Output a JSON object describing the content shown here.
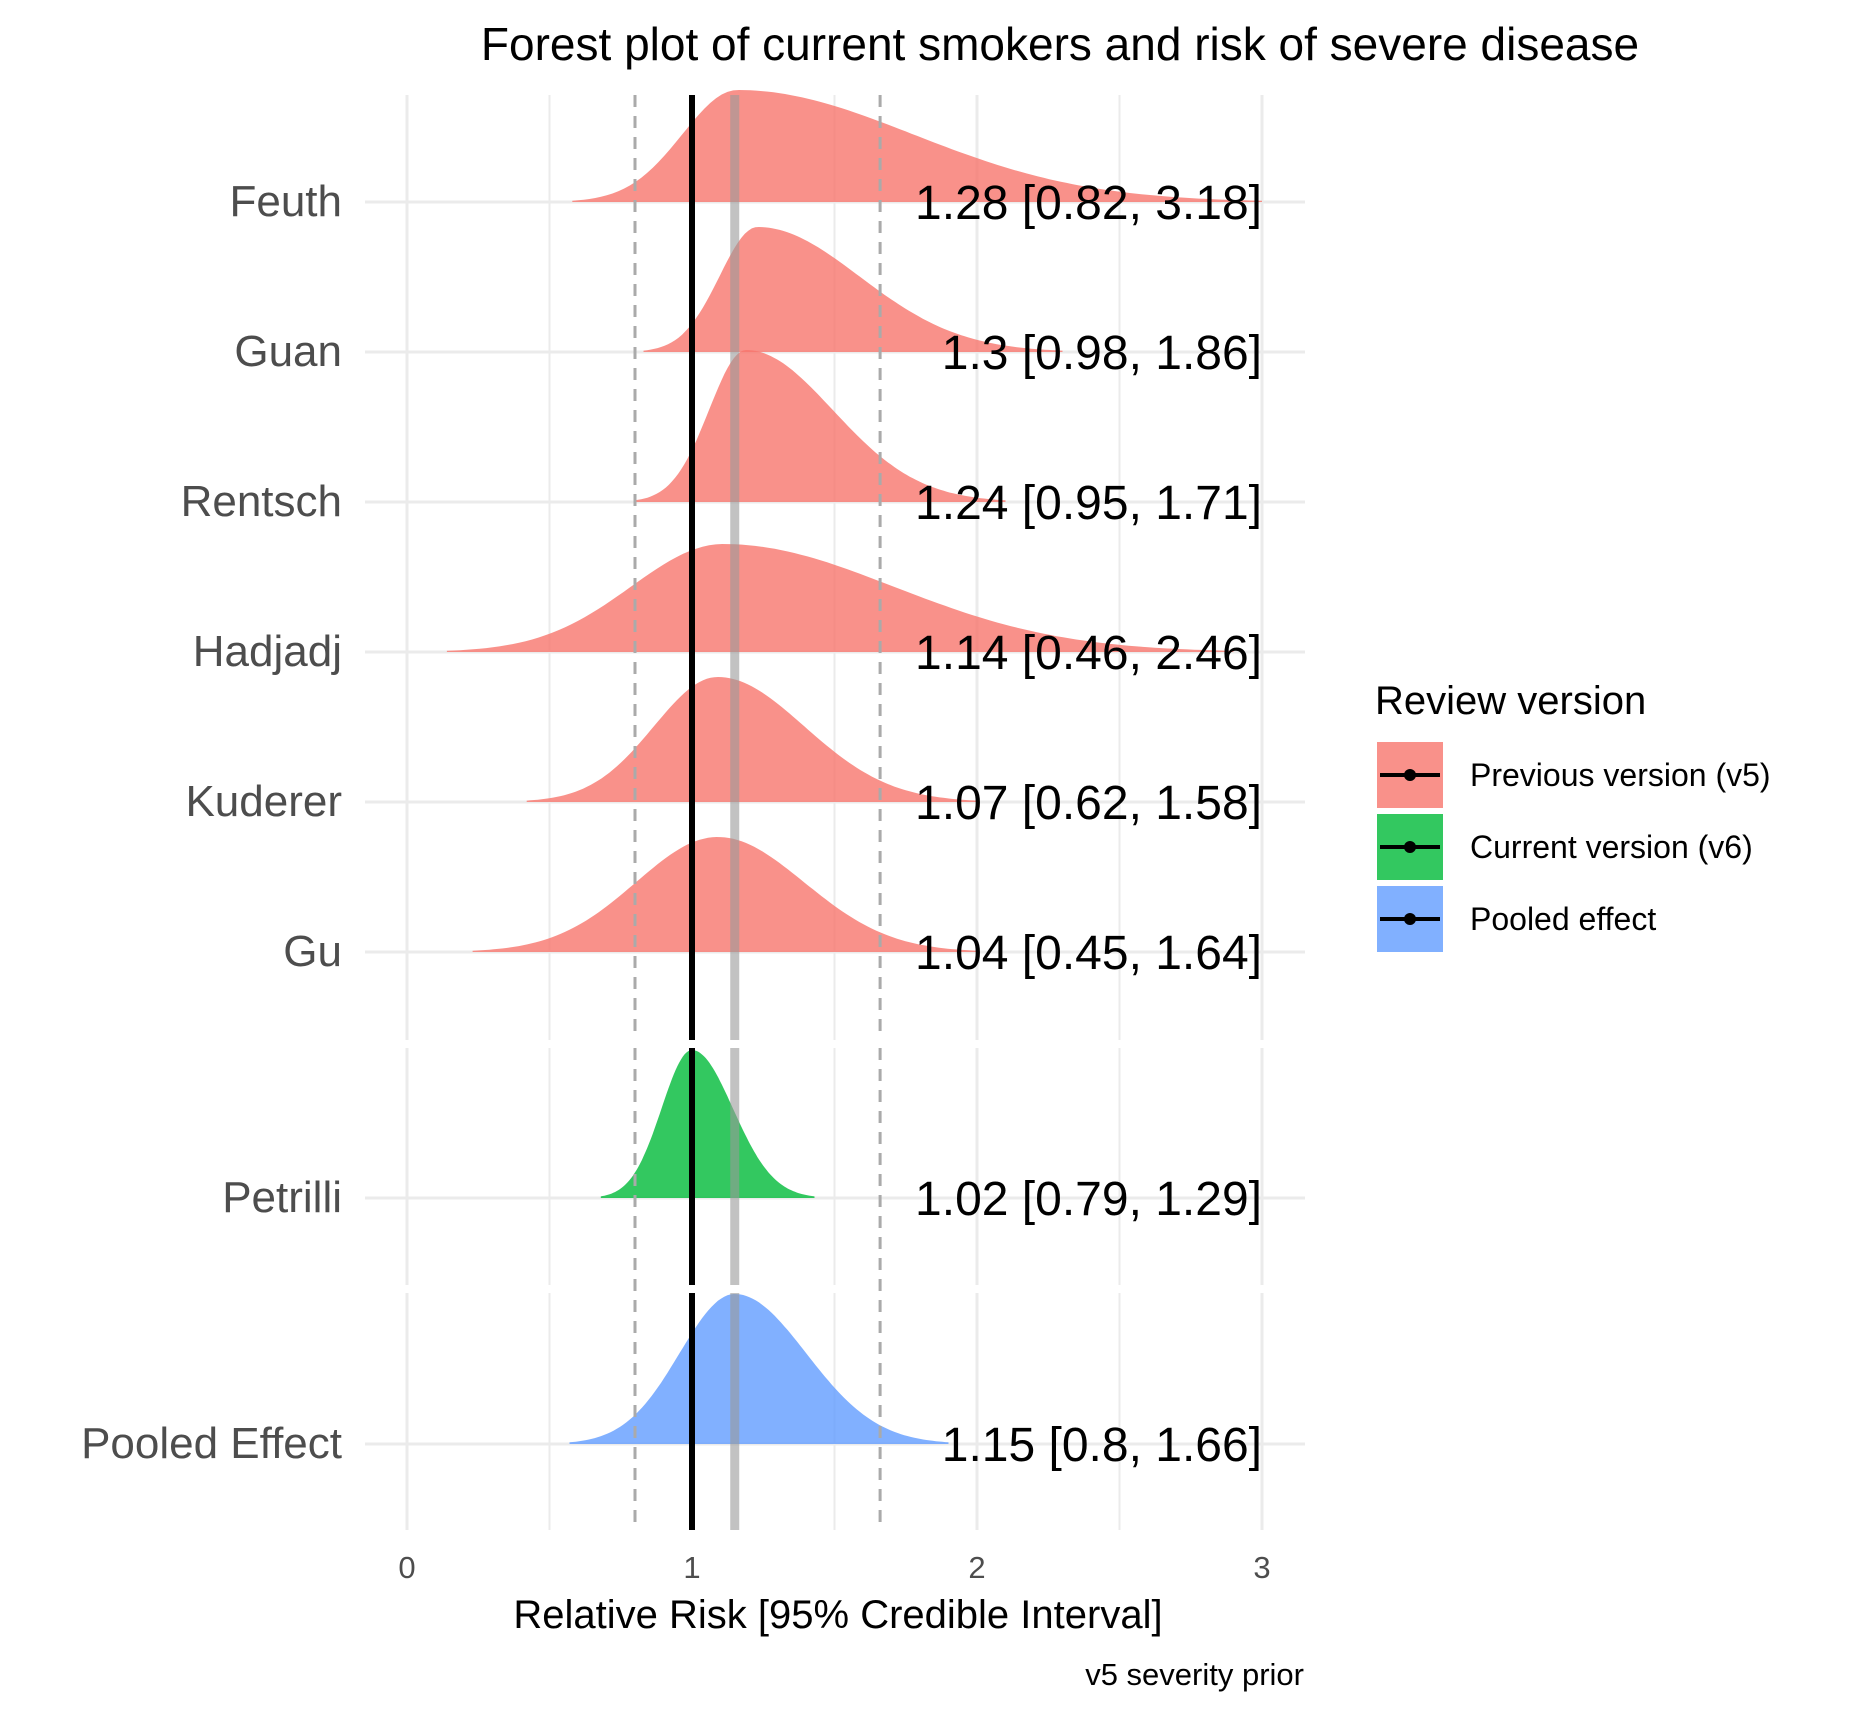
{
  "chart_data": {
    "type": "forest-density",
    "title": "Forest plot of current smokers and risk of severe disease",
    "xlabel": "Relative Risk [95% Credible Interval]",
    "caption": "v5 severity prior",
    "xlim": [
      -0.15,
      3.15
    ],
    "xticks": [
      0,
      1,
      2,
      3
    ],
    "grid": true,
    "reference_line": 1,
    "pooled_line": 1.15,
    "pooled_interval_lines": [
      0.8,
      1.66
    ],
    "legend": {
      "title": "Review version",
      "placement": "right",
      "entries": [
        {
          "label": "Previous version (v5)",
          "color": "#F8766D"
        },
        {
          "label": "Current version (v6)",
          "color": "#00BA38"
        },
        {
          "label": "Pooled effect",
          "color": "#619CFF"
        }
      ]
    },
    "studies": [
      {
        "name": "Feuth",
        "group": "Previous version (v5)",
        "estimate": 1.28,
        "lower": 0.82,
        "upper": 3.18,
        "label": "1.28 [0.82, 3.18]",
        "mode": 1.16,
        "min": 0.58,
        "max": 3.0
      },
      {
        "name": "Guan",
        "group": "Previous version (v5)",
        "estimate": 1.3,
        "lower": 0.98,
        "upper": 1.86,
        "label": "1.3 [0.98, 1.86]",
        "mode": 1.23,
        "min": 0.83,
        "max": 2.3
      },
      {
        "name": "Rentsch",
        "group": "Previous version (v5)",
        "estimate": 1.24,
        "lower": 0.95,
        "upper": 1.71,
        "label": "1.24 [0.95, 1.71]",
        "mode": 1.19,
        "min": 0.8,
        "max": 2.1
      },
      {
        "name": "Hadjadj",
        "group": "Previous version (v5)",
        "estimate": 1.14,
        "lower": 0.46,
        "upper": 2.46,
        "label": "1.14 [0.46, 2.46]",
        "mode": 1.11,
        "min": 0.14,
        "max": 2.9
      },
      {
        "name": "Kuderer",
        "group": "Previous version (v5)",
        "estimate": 1.07,
        "lower": 0.62,
        "upper": 1.58,
        "label": "1.07 [0.62, 1.58]",
        "mode": 1.09,
        "min": 0.42,
        "max": 2.0
      },
      {
        "name": "Gu",
        "group": "Previous version (v5)",
        "estimate": 1.04,
        "lower": 0.45,
        "upper": 1.64,
        "label": "1.04 [0.45, 1.64]",
        "mode": 1.09,
        "min": 0.23,
        "max": 2.0
      },
      {
        "name": "Petrilli",
        "group": "Current version (v6)",
        "estimate": 1.02,
        "lower": 0.79,
        "upper": 1.29,
        "label": "1.02 [0.79, 1.29]",
        "mode": 1.0,
        "min": 0.68,
        "max": 1.43
      },
      {
        "name": "Pooled Effect",
        "group": "Pooled effect",
        "estimate": 1.15,
        "lower": 0.8,
        "upper": 1.66,
        "label": "1.15 [0.8, 1.66]",
        "mode": 1.15,
        "min": 0.57,
        "max": 1.9
      }
    ]
  }
}
